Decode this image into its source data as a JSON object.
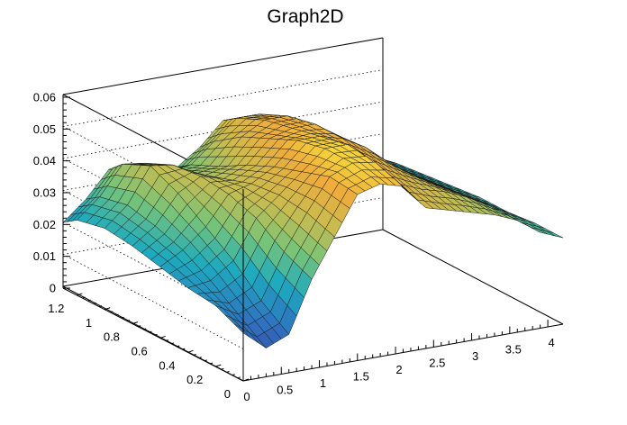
{
  "chart_data": {
    "type": "surface",
    "title": "Graph2D",
    "xlabel": "",
    "ylabel": "",
    "zlabel": "",
    "xlim": [
      0,
      4.2
    ],
    "ylim": [
      0,
      1.3
    ],
    "zlim": [
      0,
      0.06
    ],
    "x_ticks": [
      "0",
      "0.5",
      "1",
      "1.5",
      "2",
      "2.5",
      "3",
      "3.5",
      "4"
    ],
    "y_ticks": [
      "0",
      "0.2",
      "0.4",
      "0.6",
      "0.8",
      "1",
      "1.2"
    ],
    "z_ticks": [
      "0",
      "0.01",
      "0.02",
      "0.03",
      "0.04",
      "0.05",
      "0.06"
    ],
    "grid": true,
    "colormap": "viridis-like",
    "grid_x": [
      0,
      0.3,
      0.6,
      0.9,
      1.2,
      1.5,
      1.8,
      2.1,
      2.4,
      2.7,
      3.0,
      3.3,
      3.6,
      3.9,
      4.2
    ],
    "grid_y": [
      0,
      0.2,
      0.4,
      0.6,
      0.8,
      1.0,
      1.2,
      1.3
    ],
    "z": [
      [
        0.015,
        0.009,
        0.012,
        0.028,
        0.04,
        0.052,
        0.054,
        0.052,
        0.044,
        0.042,
        0.04,
        0.038,
        0.035,
        0.03,
        0.027
      ],
      [
        0.019,
        0.015,
        0.018,
        0.032,
        0.043,
        0.053,
        0.056,
        0.055,
        0.047,
        0.044,
        0.042,
        0.039,
        0.035,
        0.03,
        0.027
      ],
      [
        0.02,
        0.021,
        0.026,
        0.038,
        0.044,
        0.05,
        0.056,
        0.056,
        0.05,
        0.046,
        0.042,
        0.038,
        0.034,
        0.03,
        0.026
      ],
      [
        0.022,
        0.026,
        0.032,
        0.041,
        0.043,
        0.047,
        0.054,
        0.054,
        0.052,
        0.048,
        0.042,
        0.037,
        0.033,
        0.029,
        0.026
      ],
      [
        0.024,
        0.029,
        0.038,
        0.042,
        0.04,
        0.043,
        0.05,
        0.052,
        0.052,
        0.047,
        0.041,
        0.036,
        0.032,
        0.028,
        0.025
      ],
      [
        0.025,
        0.031,
        0.042,
        0.041,
        0.037,
        0.038,
        0.046,
        0.05,
        0.05,
        0.045,
        0.04,
        0.035,
        0.031,
        0.027,
        0.024
      ],
      [
        0.023,
        0.029,
        0.038,
        0.037,
        0.033,
        0.034,
        0.04,
        0.046,
        0.046,
        0.042,
        0.038,
        0.033,
        0.029,
        0.026,
        0.023
      ],
      [
        0.02,
        0.026,
        0.034,
        0.033,
        0.03,
        0.031,
        0.036,
        0.043,
        0.043,
        0.04,
        0.036,
        0.031,
        0.028,
        0.025,
        0.022
      ]
    ]
  }
}
